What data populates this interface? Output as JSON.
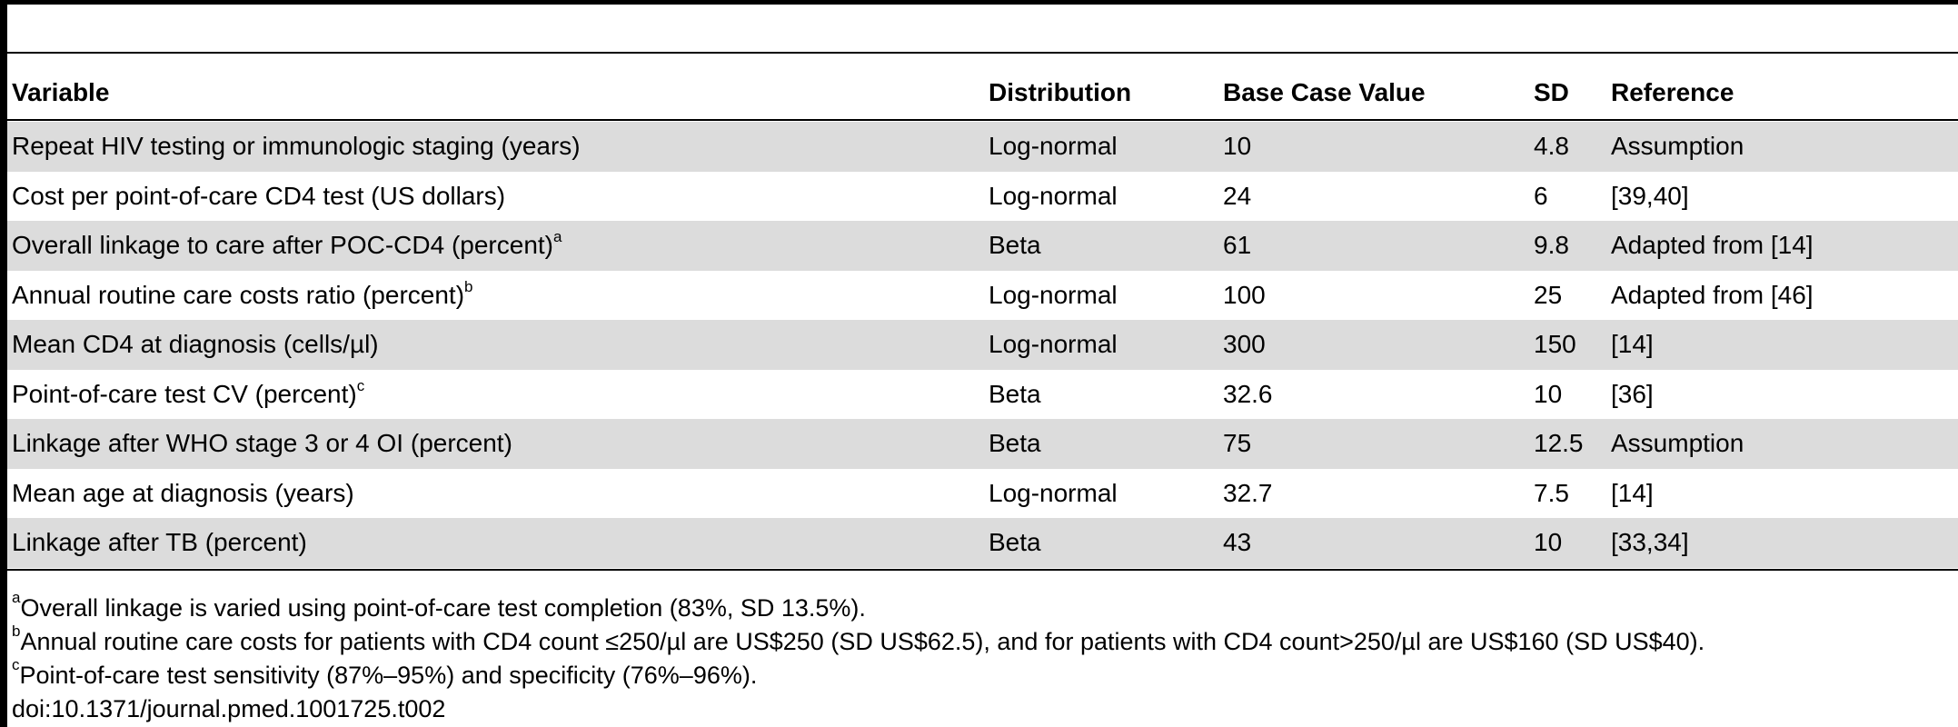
{
  "table": {
    "headers": [
      "Variable",
      "Distribution",
      "Base Case Value",
      "SD",
      "Reference"
    ],
    "rows": [
      {
        "variable": "Repeat HIV testing or immunologic staging (years)",
        "note": "",
        "distribution": "Log-normal",
        "base": "10",
        "sd": "4.8",
        "reference": "Assumption"
      },
      {
        "variable": "Cost per point-of-care CD4 test (US dollars)",
        "note": "",
        "distribution": "Log-normal",
        "base": "24",
        "sd": "6",
        "reference": "[39,40]"
      },
      {
        "variable": "Overall linkage to care after POC-CD4 (percent)",
        "note": "a",
        "distribution": "Beta",
        "base": "61",
        "sd": "9.8",
        "reference": "Adapted from [14]"
      },
      {
        "variable": "Annual routine care costs ratio (percent)",
        "note": "b",
        "distribution": "Log-normal",
        "base": "100",
        "sd": "25",
        "reference": "Adapted from [46]"
      },
      {
        "variable": "Mean CD4 at diagnosis (cells/µl)",
        "note": "",
        "distribution": "Log-normal",
        "base": "300",
        "sd": "150",
        "reference": "[14]"
      },
      {
        "variable": "Point-of-care test CV (percent)",
        "note": "c",
        "distribution": "Beta",
        "base": "32.6",
        "sd": "10",
        "reference": "[36]"
      },
      {
        "variable": "Linkage after WHO stage 3 or 4 OI (percent)",
        "note": "",
        "distribution": "Beta",
        "base": "75",
        "sd": "12.5",
        "reference": "Assumption"
      },
      {
        "variable": "Mean age at diagnosis (years)",
        "note": "",
        "distribution": "Log-normal",
        "base": "32.7",
        "sd": "7.5",
        "reference": "[14]"
      },
      {
        "variable": "Linkage after TB (percent)",
        "note": "",
        "distribution": "Beta",
        "base": "43",
        "sd": "10",
        "reference": "[33,34]"
      }
    ]
  },
  "footnotes": [
    {
      "mark": "a",
      "text": "Overall linkage is varied using point-of-care test completion (83%, SD 13.5%)."
    },
    {
      "mark": "b",
      "text": "Annual routine care costs for patients with CD4 count ≤250/µl are US$250 (SD US$62.5), and for patients with CD4 count>250/µl are US$160 (SD US$40)."
    },
    {
      "mark": "c",
      "text": "Point-of-care test sensitivity (87%–95%) and specificity (76%–96%)."
    }
  ],
  "doi": "doi:10.1371/journal.pmed.1001725.t002"
}
